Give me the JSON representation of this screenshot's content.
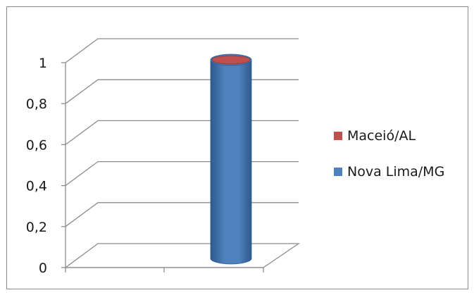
{
  "chart_data": {
    "type": "bar",
    "style": "3d-cylinder",
    "categories": [
      ""
    ],
    "series": [
      {
        "name": "Maceió/AL",
        "values": [
          0
        ],
        "color": "#C0504D"
      },
      {
        "name": "Nova Lima/MG",
        "values": [
          1
        ],
        "color": "#4F81BD"
      }
    ],
    "ylim": [
      0,
      1
    ],
    "yticks": [
      0,
      0.2,
      0.4,
      0.6,
      0.8,
      1
    ],
    "ytick_labels": [
      "0",
      "0,2",
      "0,4",
      "0,6",
      "0,8",
      "1"
    ],
    "grid": true,
    "legend_position": "right"
  }
}
